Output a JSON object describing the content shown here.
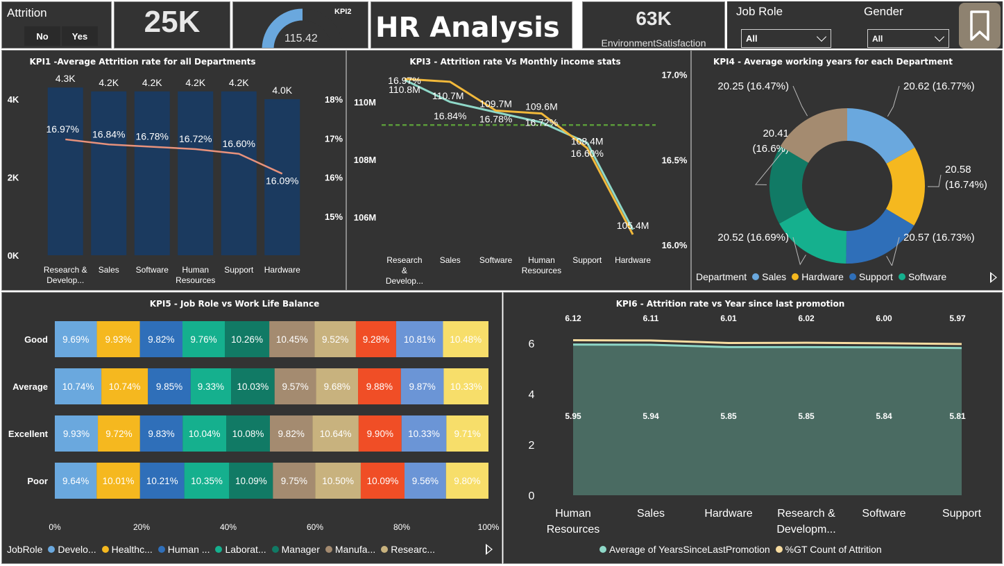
{
  "slicer_attrition": {
    "title": "Attrition",
    "options": [
      "No",
      "Yes"
    ]
  },
  "card_total": {
    "value": "25K"
  },
  "gauge": {
    "title": "KPI2",
    "value": "115.42",
    "fraction": 0.5
  },
  "header": {
    "title": "HR Analysis"
  },
  "card_env": {
    "value": "63K",
    "label": "EnvironmentSatisfaction"
  },
  "filter_jobrole": {
    "label": "Job Role",
    "selected": "All"
  },
  "filter_gender": {
    "label": "Gender",
    "selected": "All"
  },
  "bookmark": {
    "icon": "bookmark-icon"
  },
  "kpi1": {
    "title": "KPI1 -Average Attrition rate for all Departments",
    "chart_data": {
      "type": "bar",
      "categories": [
        "Research & Develop...",
        "Sales",
        "Software",
        "Human Resources",
        "Support",
        "Hardware"
      ],
      "cat_lines": [
        [
          "Research &",
          "Develop..."
        ],
        [
          "Sales"
        ],
        [
          "Software"
        ],
        [
          "Human",
          "Resources"
        ],
        [
          "Support"
        ],
        [
          "Hardware"
        ]
      ],
      "bar_values": [
        4300,
        4200,
        4200,
        4200,
        4200,
        4000
      ],
      "bar_labels": [
        "4.3K",
        "4.2K",
        "4.2K",
        "4.2K",
        "4.2K",
        "4.0K"
      ],
      "line_values": [
        16.97,
        16.84,
        16.78,
        16.72,
        16.6,
        16.09
      ],
      "line_labels": [
        "16.97%",
        "16.84%",
        "16.78%",
        "16.72%",
        "16.60%",
        "16.09%"
      ],
      "y_left_ticks": [
        "0K",
        "2K",
        "4K"
      ],
      "y_left_range": [
        0,
        4000
      ],
      "y_right_ticks": [
        "15%",
        "16%",
        "17%",
        "18%"
      ],
      "y_right_range": [
        14,
        18
      ],
      "bar_color": "#1b3a5f",
      "line_color": "#e8927c"
    }
  },
  "kpi3": {
    "title": "KPI3 - Attrition rate Vs Monthly income stats",
    "chart_data": {
      "type": "line",
      "categories": [
        "Research & Develop...",
        "Sales",
        "Software",
        "Human Resources",
        "Support",
        "Hardware"
      ],
      "cat_lines": [
        [
          "Research",
          "&",
          "Develop..."
        ],
        [
          "Sales"
        ],
        [
          "Software"
        ],
        [
          "Human",
          "Resources"
        ],
        [
          "Support"
        ],
        [
          "Hardware"
        ]
      ],
      "income_values": [
        110.8,
        110.7,
        109.7,
        109.6,
        108.4,
        105.4
      ],
      "income_labels": [
        "110.8M",
        "110.7M",
        "109.7M",
        "109.6M",
        "108.4M",
        "105.4M"
      ],
      "attrition_values": [
        16.97,
        16.84,
        16.78,
        16.72,
        16.6,
        16.09
      ],
      "attrition_labels": [
        "16.97%",
        "16.84%",
        "16.78%",
        "16.72%",
        "16.60%",
        ""
      ],
      "y_left_ticks": [
        "106M",
        "108M",
        "110M"
      ],
      "y_left_range": [
        104.8,
        111.3
      ],
      "y_right_ticks": [
        "16.0%",
        "16.5%",
        "17.0%"
      ],
      "y_right_range": [
        15.96,
        17.06
      ],
      "reference_value": 109.2,
      "income_color": "#f2b93b",
      "attrition_color": "#8fd8c8",
      "reference_color": "#5a9a3a"
    }
  },
  "kpi4": {
    "title": "KPI4 - Average working years for each Department",
    "chart_data": {
      "type": "pie",
      "slices": [
        {
          "name": "Sales",
          "value": 20.62,
          "label": "20.62 (16.77%)",
          "color": "#6aa8de"
        },
        {
          "name": "Hardware",
          "value": 20.58,
          "label": "20.58 (16.74%)",
          "color": "#f5b81f"
        },
        {
          "name": "Support",
          "value": 20.57,
          "label": "20.57 (16.73%)",
          "color": "#2f6fb9"
        },
        {
          "name": "Software",
          "value": 20.52,
          "label": "20.52 (16.69%)",
          "color": "#15b08e"
        },
        {
          "name": "",
          "value": 20.41,
          "label": "20.41 (16.6%)",
          "color": "#117a65"
        },
        {
          "name": "",
          "value": 20.25,
          "label": "20.25 (16.47%)",
          "color": "#a48b70"
        }
      ],
      "legend_title": "Department",
      "legend_items": [
        "Sales",
        "Hardware",
        "Support",
        "Software"
      ]
    }
  },
  "kpi5": {
    "title": "KPI5 - Job Role vs Work Life Balance",
    "chart_data": {
      "type": "bar",
      "orientation": "horizontal-100%-stacked",
      "rows": [
        "Good",
        "Average",
        "Excellent",
        "Poor"
      ],
      "series_colors": [
        "#6aa8de",
        "#f5b81f",
        "#2f6fb9",
        "#15b08e",
        "#117a65",
        "#a48b70",
        "#c8b27e",
        "#f04e26",
        "#6b95d6",
        "#f7de6a"
      ],
      "values": [
        [
          9.69,
          9.93,
          9.82,
          9.76,
          10.26,
          10.45,
          9.52,
          9.28,
          10.81,
          10.48
        ],
        [
          10.74,
          10.74,
          9.85,
          9.33,
          10.03,
          9.57,
          9.68,
          9.88,
          9.87,
          10.33
        ],
        [
          9.93,
          9.72,
          9.83,
          10.04,
          10.08,
          9.82,
          10.64,
          9.9,
          10.33,
          9.71
        ],
        [
          9.64,
          10.01,
          10.21,
          10.35,
          10.09,
          9.75,
          10.5,
          10.09,
          9.56,
          9.8
        ]
      ],
      "labels": [
        [
          "9.69%",
          "9.93%",
          "9.82%",
          "9.76%",
          "10.26%",
          "10.45%",
          "9.52%",
          "9.28%",
          "10.81%",
          "10.48%"
        ],
        [
          "10.74%",
          "10.74%",
          "9.85%",
          "9.33%",
          "10.03%",
          "9.57%",
          "9.68%",
          "9.88%",
          "9.87%",
          "10.33%"
        ],
        [
          "9.93%",
          "9.72%",
          "9.83%",
          "10.04%",
          "10.08%",
          "9.82%",
          "10.64%",
          "9.90%",
          "10.33%",
          "9.71%"
        ],
        [
          "9.64%",
          "10.01%",
          "10.21%",
          "10.35%",
          "10.09%",
          "9.75%",
          "10.50%",
          "10.09%",
          "9.56%",
          "9.80%"
        ]
      ],
      "x_ticks": [
        "0%",
        "20%",
        "40%",
        "60%",
        "80%",
        "100%"
      ],
      "legend_title": "JobRole",
      "legend_items": [
        "Develo...",
        "Healthc...",
        "Human ...",
        "Laborat...",
        "Manager",
        "Manufa...",
        "Researc..."
      ]
    }
  },
  "kpi6": {
    "title": "KPI6 - Attrition rate vs Year since last promotion",
    "chart_data": {
      "type": "area",
      "categories": [
        "Human Resources",
        "Sales",
        "Hardware",
        "Research & Developm...",
        "Software",
        "Support"
      ],
      "cat_lines": [
        [
          "Human",
          "Resources"
        ],
        [
          "Sales"
        ],
        [
          "Hardware"
        ],
        [
          "Research &",
          "Developm..."
        ],
        [
          "Software"
        ],
        [
          "Support"
        ]
      ],
      "series": [
        {
          "name": "Average of YearsSinceLastPromotion",
          "values": [
            5.95,
            5.94,
            5.85,
            5.85,
            5.84,
            5.81
          ],
          "labels": [
            "5.95",
            "5.94",
            "5.85",
            "5.85",
            "5.84",
            "5.81"
          ],
          "color": "#8fd8c8"
        },
        {
          "name": "%GT Count of Attrition",
          "values": [
            6.12,
            6.11,
            6.01,
            6.02,
            6.0,
            5.97
          ],
          "labels": [
            "6.12",
            "6.11",
            "6.01",
            "6.02",
            "6.00",
            "5.97"
          ],
          "color": "#f7dca0"
        }
      ],
      "y_ticks": [
        "0",
        "2",
        "4",
        "6"
      ],
      "y_range": [
        0,
        6.9
      ],
      "area_color": "#4a6b62"
    }
  }
}
